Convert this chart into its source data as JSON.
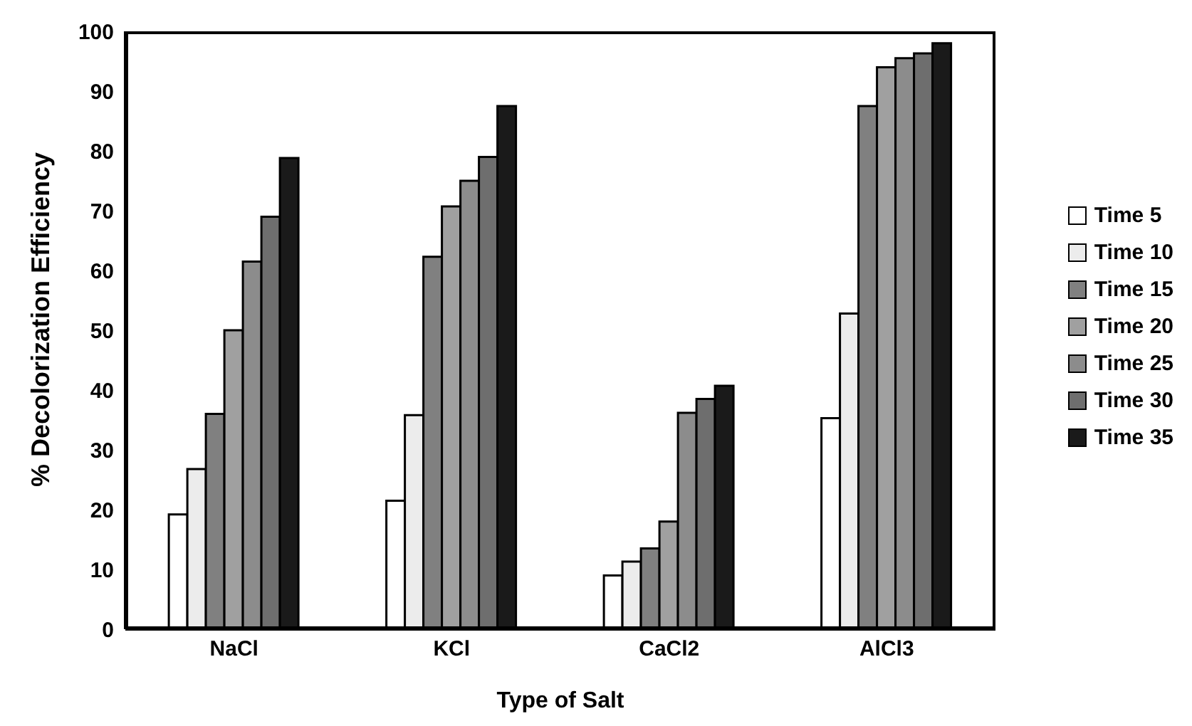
{
  "chart_data": {
    "type": "bar",
    "xlabel": "Type of Salt",
    "ylabel": "% Decolorization Efficiency",
    "categories": [
      "NaCl",
      "KCl",
      "CaCl2",
      "AlCl3"
    ],
    "series": [
      {
        "name": "Time 5",
        "color": "#ffffff",
        "values": [
          19.2,
          21.5,
          9,
          35.3
        ]
      },
      {
        "name": "Time 10",
        "color": "#ececec",
        "values": [
          26.8,
          35.8,
          11.3,
          52.8
        ]
      },
      {
        "name": "Time 15",
        "color": "#808080",
        "values": [
          36,
          62.3,
          13.5,
          87.5
        ]
      },
      {
        "name": "Time 20",
        "color": "#a0a0a0",
        "values": [
          50,
          70.7,
          18,
          94
        ]
      },
      {
        "name": "Time 25",
        "color": "#8c8c8c",
        "values": [
          61.5,
          75,
          36.2,
          95.5
        ]
      },
      {
        "name": "Time 30",
        "color": "#6e6e6e",
        "values": [
          69,
          79,
          38.5,
          96.3
        ]
      },
      {
        "name": "Time 35",
        "color": "#1a1a1a",
        "values": [
          78.8,
          87.5,
          40.7,
          98
        ]
      }
    ],
    "ylim": [
      0,
      100
    ],
    "yticks": [
      0,
      10,
      20,
      30,
      40,
      50,
      60,
      70,
      80,
      90,
      100
    ],
    "grid": false,
    "legend": "right"
  }
}
